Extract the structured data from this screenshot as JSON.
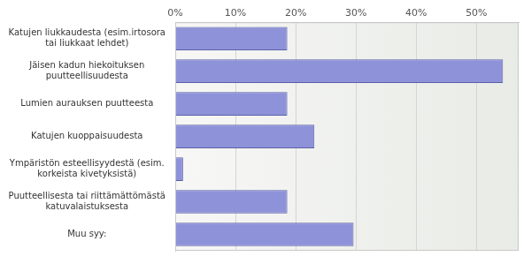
{
  "chart_data": {
    "type": "bar",
    "orientation": "horizontal",
    "categories": [
      "Katujen liukkaudesta (esim.irtosora tai liukkaat lehdet)",
      "Jäisen kadun hiekoituksen puutteellisuudesta",
      "Lumien aurauksen puutteesta",
      "Katujen kuoppaisuudesta",
      "Ympäristön esteellisyydestä (esim. korkeista kivetyksistä)",
      "Puutteellisesta tai riittämättömästä katuvalaistuksesta",
      "Muu syy:"
    ],
    "values": [
      18.6,
      54.4,
      18.6,
      23.1,
      1.3,
      18.6,
      29.6
    ],
    "color": "#8e92d9",
    "xlim": [
      0,
      57
    ],
    "xticks": [
      {
        "value": 0,
        "label": "0%"
      },
      {
        "value": 10,
        "label": "10%"
      },
      {
        "value": 20,
        "label": "20%"
      },
      {
        "value": 30,
        "label": "30%"
      },
      {
        "value": 40,
        "label": "40%"
      },
      {
        "value": 50,
        "label": "50%"
      }
    ],
    "grid": true
  }
}
